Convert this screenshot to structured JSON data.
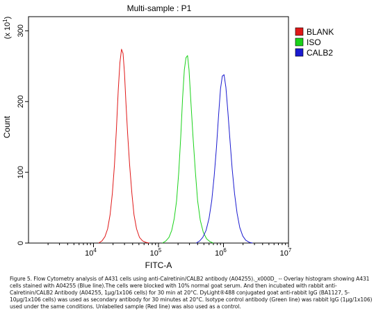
{
  "chart_data": {
    "type": "line",
    "title": "Multi-sample : P1",
    "xlabel": "FITC-A",
    "ylabel": "Count",
    "y_multiplier_label": "(x 10^1)",
    "x_scale": "log",
    "xlim": [
      1000,
      10000000
    ],
    "ylim": [
      0,
      320
    ],
    "x_ticks": [
      {
        "value": 10000,
        "base": "10",
        "exp": "4"
      },
      {
        "value": 100000,
        "base": "10",
        "exp": "5"
      },
      {
        "value": 1000000,
        "base": "10",
        "exp": "6"
      },
      {
        "value": 10000000,
        "base": "10",
        "exp": "7"
      }
    ],
    "y_ticks": [
      {
        "value": 0,
        "label": "0"
      },
      {
        "value": 100,
        "label": "100"
      },
      {
        "value": 200,
        "label": "200"
      },
      {
        "value": 300,
        "label": "300"
      }
    ],
    "legend_position": "right",
    "series": [
      {
        "name": "BLANK",
        "color": "#e01818",
        "points": [
          [
            12000,
            0
          ],
          [
            13500,
            3
          ],
          [
            15000,
            9
          ],
          [
            16500,
            20
          ],
          [
            18000,
            40
          ],
          [
            19500,
            70
          ],
          [
            21000,
            110
          ],
          [
            22500,
            160
          ],
          [
            24000,
            215
          ],
          [
            25500,
            255
          ],
          [
            27000,
            274
          ],
          [
            28500,
            268
          ],
          [
            30000,
            240
          ],
          [
            31500,
            200
          ],
          [
            33500,
            155
          ],
          [
            36000,
            110
          ],
          [
            39000,
            70
          ],
          [
            42000,
            40
          ],
          [
            46000,
            20
          ],
          [
            51000,
            8
          ],
          [
            57000,
            3
          ],
          [
            64000,
            1
          ],
          [
            72000,
            0
          ]
        ]
      },
      {
        "name": "ISO",
        "color": "#1ad21a",
        "points": [
          [
            115000,
            0
          ],
          [
            130000,
            3
          ],
          [
            145000,
            8
          ],
          [
            160000,
            18
          ],
          [
            175000,
            35
          ],
          [
            190000,
            60
          ],
          [
            205000,
            100
          ],
          [
            220000,
            150
          ],
          [
            235000,
            205
          ],
          [
            250000,
            245
          ],
          [
            265000,
            262
          ],
          [
            280000,
            265
          ],
          [
            295000,
            245
          ],
          [
            315000,
            200
          ],
          [
            340000,
            150
          ],
          [
            370000,
            100
          ],
          [
            400000,
            60
          ],
          [
            440000,
            32
          ],
          [
            490000,
            15
          ],
          [
            550000,
            6
          ],
          [
            620000,
            2
          ],
          [
            700000,
            0
          ]
        ]
      },
      {
        "name": "CALB2",
        "color": "#1a1ad0",
        "points": [
          [
            380000,
            0
          ],
          [
            430000,
            3
          ],
          [
            480000,
            8
          ],
          [
            540000,
            18
          ],
          [
            600000,
            35
          ],
          [
            660000,
            60
          ],
          [
            720000,
            95
          ],
          [
            780000,
            135
          ],
          [
            840000,
            180
          ],
          [
            900000,
            218
          ],
          [
            960000,
            236
          ],
          [
            1020000,
            238
          ],
          [
            1090000,
            220
          ],
          [
            1170000,
            185
          ],
          [
            1260000,
            145
          ],
          [
            1360000,
            105
          ],
          [
            1480000,
            70
          ],
          [
            1620000,
            42
          ],
          [
            1780000,
            22
          ],
          [
            1980000,
            10
          ],
          [
            2200000,
            4
          ],
          [
            2500000,
            1
          ],
          [
            2800000,
            0
          ]
        ]
      }
    ]
  },
  "caption": "Figure 5. Flow Cytometry analysis of A431 cells using anti-Calretinin/CALB2 antibody (A04255)._x000D_ -- Overlay histogram showing A431 cells stained with A04255 (Blue line).The cells were blocked with 10% normal goat serum. And then incubated with rabbit anti-Calretinin/CALB2 Antibody (A04255, 1µg/1x106 cells) for 30 min at 20°C. DyLight®488 conjugated goat anti-rabbit IgG (BA1127, 5-10µg/1x106 cells) was used as secondary antibody for 30 minutes at 20°C. Isotype control antibody (Green line) was rabbit IgG (1µg/1x106) used under the same conditions. Unlabelled sample (Red line) was also used as a control."
}
